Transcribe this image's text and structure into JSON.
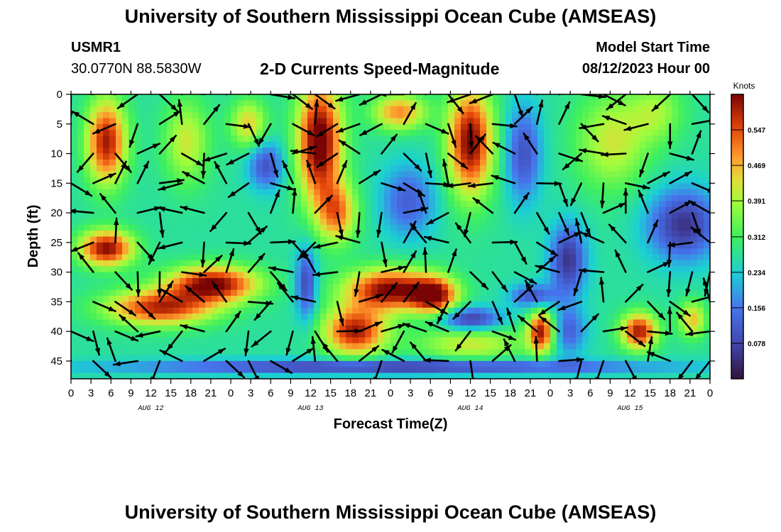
{
  "header": {
    "title": "University of Southern Mississippi Ocean Cube (AMSEAS)",
    "station": "USMR1",
    "coords": "30.0770N  88.5830W",
    "subtitle": "2-D Currents Speed-Magnitude",
    "model_start_label": "Model Start Time",
    "model_start_value": "08/12/2023 Hour 00"
  },
  "footer": {
    "title": "University of Southern Mississippi Ocean Cube (AMSEAS)"
  },
  "chart_data": {
    "type": "heatmap",
    "title": "2-D Currents Speed-Magnitude",
    "xlabel": "Forecast Time(Z)",
    "ylabel": "Depth (ft)",
    "units_label": "Knots",
    "x_range_hours": [
      0,
      72
    ],
    "y_range_ft": [
      0,
      48
    ],
    "x_ticks": [
      "0",
      "3",
      "6",
      "9",
      "12",
      "15",
      "18",
      "21",
      "0",
      "3",
      "6",
      "9",
      "12",
      "15",
      "18",
      "21",
      "0",
      "3",
      "6",
      "9",
      "12",
      "15",
      "18",
      "21",
      "0",
      "3",
      "6",
      "9",
      "12",
      "15",
      "18",
      "21",
      "0"
    ],
    "y_ticks": [
      0,
      5,
      10,
      15,
      20,
      25,
      30,
      35,
      40,
      45
    ],
    "day_labels": [
      {
        "label": "AUG 12",
        "hour": 9
      },
      {
        "label": "AUG 13",
        "hour": 27
      },
      {
        "label": "AUG 14",
        "hour": 45
      },
      {
        "label": "AUG 15",
        "hour": 63
      }
    ],
    "colorbar": {
      "min": 0.0,
      "max": 0.625,
      "ticks": [
        "0.547",
        "0.469",
        "0.391",
        "0.312",
        "0.234",
        "0.156",
        "0.078"
      ],
      "tick_values": [
        0.547,
        0.469,
        0.391,
        0.312,
        0.234,
        0.156,
        0.078
      ]
    },
    "vector_hours": [
      0,
      2.5,
      5,
      7.5,
      10,
      12.5,
      15,
      17.5,
      20,
      22.5,
      25,
      27.5,
      30,
      32.5,
      35,
      37.5,
      40,
      42.5,
      45,
      47.5,
      50,
      52.5,
      55,
      57.5,
      60,
      62.5,
      65,
      67.5,
      70,
      72
    ],
    "vector_depths_ft": [
      0,
      5,
      10,
      15,
      20,
      25,
      30,
      35,
      40,
      45
    ],
    "speed_features": [
      {
        "hour": 4,
        "depth": 8,
        "value": 0.6,
        "sx": 2.2,
        "sy": 7
      },
      {
        "hour": 4,
        "depth": 26,
        "value": 0.62,
        "sx": 3,
        "sy": 3
      },
      {
        "hour": 16,
        "depth": 32,
        "value": 0.63,
        "sx": 5,
        "sy": 3
      },
      {
        "hour": 10,
        "depth": 36,
        "value": 0.58,
        "sx": 6,
        "sy": 3
      },
      {
        "hour": 13,
        "depth": 8,
        "value": 0.42,
        "sx": 2.5,
        "sy": 7
      },
      {
        "hour": 20,
        "depth": 5,
        "value": 0.45,
        "sx": 2,
        "sy": 4
      },
      {
        "hour": 22,
        "depth": 12,
        "value": 0.1,
        "sx": 2,
        "sy": 4
      },
      {
        "hour": 26.5,
        "depth": 32,
        "value": 0.08,
        "sx": 1.2,
        "sy": 6
      },
      {
        "hour": 28,
        "depth": 8,
        "value": 0.66,
        "sx": 2.5,
        "sy": 10
      },
      {
        "hour": 30,
        "depth": 20,
        "value": 0.5,
        "sx": 2.2,
        "sy": 5
      },
      {
        "hour": 37,
        "depth": 3,
        "value": 0.5,
        "sx": 3,
        "sy": 3
      },
      {
        "hour": 38,
        "depth": 18,
        "value": 0.12,
        "sx": 3,
        "sy": 6
      },
      {
        "hour": 36,
        "depth": 33,
        "value": 0.63,
        "sx": 5,
        "sy": 3.5
      },
      {
        "hour": 32,
        "depth": 40,
        "value": 0.6,
        "sx": 3.5,
        "sy": 4
      },
      {
        "hour": 41,
        "depth": 34,
        "value": 0.58,
        "sx": 2.5,
        "sy": 3
      },
      {
        "hour": 45,
        "depth": 8,
        "value": 0.63,
        "sx": 2.5,
        "sy": 9
      },
      {
        "hour": 45,
        "depth": 38,
        "value": 0.05,
        "sx": 3.5,
        "sy": 2
      },
      {
        "hour": 45,
        "depth": 42,
        "value": 0.42,
        "sx": 6,
        "sy": 3
      },
      {
        "hour": 51,
        "depth": 10,
        "value": 0.1,
        "sx": 2,
        "sy": 8
      },
      {
        "hour": 52,
        "depth": 34,
        "value": 0.1,
        "sx": 2.5,
        "sy": 2
      },
      {
        "hour": 56,
        "depth": 28,
        "value": 0.05,
        "sx": 2,
        "sy": 6
      },
      {
        "hour": 53,
        "depth": 40,
        "value": 0.6,
        "sx": 1.5,
        "sy": 3.5
      },
      {
        "hour": 56,
        "depth": 40,
        "value": 0.12,
        "sx": 2,
        "sy": 4
      },
      {
        "hour": 61,
        "depth": 8,
        "value": 0.42,
        "sx": 4,
        "sy": 8
      },
      {
        "hour": 66,
        "depth": 3,
        "value": 0.38,
        "sx": 3,
        "sy": 5
      },
      {
        "hour": 69,
        "depth": 22,
        "value": 0.05,
        "sx": 4,
        "sy": 6
      },
      {
        "hour": 64,
        "depth": 40,
        "value": 0.6,
        "sx": 2,
        "sy": 3
      },
      {
        "hour": 70,
        "depth": 38,
        "value": 0.46,
        "sx": 1.5,
        "sy": 3
      },
      {
        "hour": 36,
        "depth": 46,
        "value": 0.05,
        "sx": 30,
        "sy": 1.2
      }
    ]
  }
}
